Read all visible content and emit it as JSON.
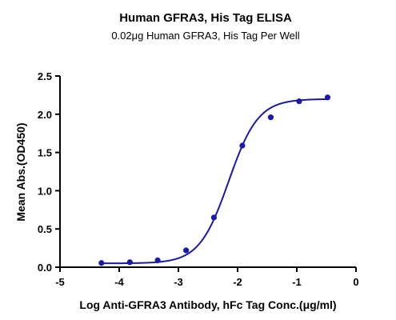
{
  "chart_data": {
    "type": "scatter",
    "title": "Human GFRA3, His Tag ELISA",
    "subtitle": "0.02μg Human GFRA3, His Tag Per Well",
    "xlabel": "Log Anti-GFRA3 Antibody, hFc Tag Conc.(μg/ml)",
    "ylabel": "Mean Abs.(OD450)",
    "xlim": [
      -5,
      0
    ],
    "ylim": [
      0,
      2.5
    ],
    "x_ticks": [
      -5,
      -4,
      -3,
      -2,
      -1,
      0
    ],
    "x_tick_labels": [
      "-5",
      "-4",
      "-3",
      "-2",
      "-1",
      "0"
    ],
    "y_ticks": [
      0,
      0.5,
      1,
      1.5,
      2,
      2.5
    ],
    "y_tick_labels": [
      "0.0",
      "0.5",
      "1.0",
      "1.5",
      "2.0",
      "2.5"
    ],
    "grid": false,
    "color": "#1a1aa6",
    "series": [
      {
        "x": [
          -4.3,
          -3.82,
          -3.35,
          -2.87,
          -2.4,
          -1.92,
          -1.44,
          -0.96,
          -0.48
        ],
        "y": [
          0.055,
          0.065,
          0.09,
          0.22,
          0.65,
          1.59,
          1.96,
          2.17,
          2.22
        ]
      }
    ],
    "fit_curve": {
      "model": "4PL",
      "bottom": 0.05,
      "top": 2.2,
      "logEC50": -2.15,
      "hill": 1.75
    }
  }
}
